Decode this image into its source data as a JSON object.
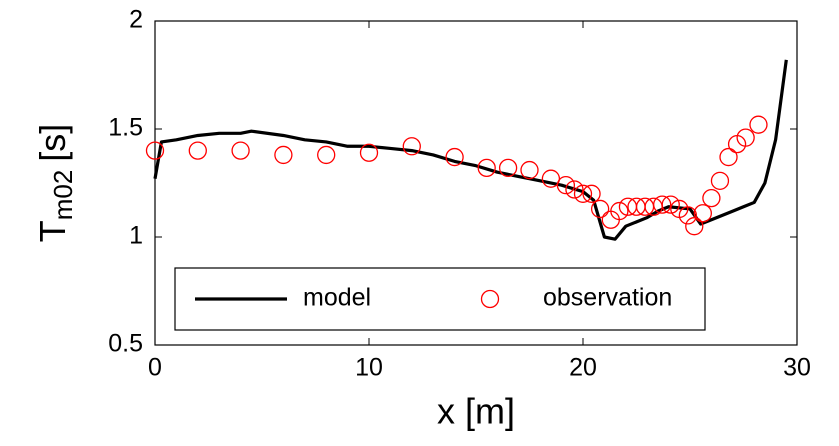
{
  "chart_data": {
    "type": "line",
    "xlabel": "x [m]",
    "ylabel": {
      "main": "T",
      "sub": "m02",
      "unit": "[s]"
    },
    "xlim": [
      0,
      30
    ],
    "xticks": [
      0,
      10,
      20,
      30
    ],
    "ylim": [
      0.5,
      2
    ],
    "yticks": [
      0.5,
      1,
      1.5,
      2
    ],
    "legend_loc": "lower left",
    "series": [
      {
        "name": "model",
        "color": "#000000",
        "style": "line",
        "x": [
          0,
          0.3,
          1,
          2,
          3,
          4,
          4.5,
          6,
          7,
          8,
          9,
          10,
          11,
          12,
          13,
          14,
          15,
          16,
          17,
          18,
          19,
          20,
          20.5,
          21,
          21.5,
          22,
          23,
          23.5,
          24,
          25,
          25.5,
          26,
          27,
          27.5,
          28,
          28.5,
          29,
          29.5
        ],
        "values": [
          1.27,
          1.44,
          1.45,
          1.47,
          1.48,
          1.48,
          1.49,
          1.47,
          1.45,
          1.44,
          1.42,
          1.42,
          1.41,
          1.4,
          1.38,
          1.35,
          1.33,
          1.3,
          1.28,
          1.26,
          1.24,
          1.21,
          1.17,
          1.0,
          0.99,
          1.05,
          1.09,
          1.12,
          1.14,
          1.13,
          1.06,
          1.08,
          1.12,
          1.14,
          1.16,
          1.25,
          1.45,
          1.82
        ]
      },
      {
        "name": "observation",
        "color": "#ff0000",
        "style": "circle",
        "x": [
          0,
          2,
          4,
          6,
          8,
          10,
          12,
          14,
          15.5,
          16.5,
          17.5,
          18.5,
          19.2,
          19.6,
          20,
          20.4,
          20.8,
          21.3,
          21.7,
          22.1,
          22.5,
          22.9,
          23.3,
          23.7,
          24.1,
          24.5,
          24.9,
          25.2,
          25.6,
          26,
          26.4,
          26.8,
          27.2,
          27.6,
          28.2
        ],
        "values": [
          1.4,
          1.4,
          1.4,
          1.38,
          1.38,
          1.39,
          1.42,
          1.37,
          1.32,
          1.32,
          1.31,
          1.27,
          1.24,
          1.22,
          1.2,
          1.2,
          1.13,
          1.08,
          1.12,
          1.14,
          1.14,
          1.14,
          1.14,
          1.15,
          1.15,
          1.13,
          1.1,
          1.05,
          1.11,
          1.18,
          1.26,
          1.37,
          1.43,
          1.46,
          1.52
        ]
      }
    ]
  }
}
